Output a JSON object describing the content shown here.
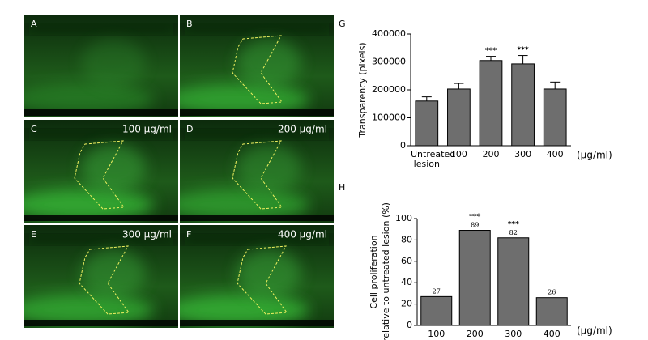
{
  "panels": [
    {
      "label": "A"
    },
    {
      "label": "B"
    },
    {
      "label": "C",
      "concentration": "100 µg/ml"
    },
    {
      "label": "D",
      "concentration": "200 µg/ml"
    },
    {
      "label": "E",
      "concentration": "300 µg/ml"
    },
    {
      "label": "F",
      "concentration": "400 µg/ml"
    }
  ],
  "chart_data": [
    {
      "type": "bar",
      "panel": "G",
      "y_label": [
        "Transparency (pixels)"
      ],
      "categories": [
        "Untreated lesion",
        "100",
        "200",
        "300",
        "400"
      ],
      "x_unit": "(µg/ml)",
      "values": [
        160000,
        203000,
        305000,
        293000,
        203000
      ],
      "errors": [
        15000,
        20000,
        15000,
        30000,
        25000
      ],
      "significance": [
        null,
        null,
        "***",
        "***",
        null
      ],
      "color": "#6e6e6e",
      "ylim": [
        0,
        400000
      ],
      "yticks": [
        0,
        100000,
        200000,
        300000,
        400000
      ],
      "grid": false
    },
    {
      "type": "bar",
      "panel": "H",
      "y_label": [
        "Cell proliferation",
        "relative to untreated lesion (%)"
      ],
      "categories": [
        "100",
        "200",
        "300",
        "400"
      ],
      "x_unit": "(µg/ml)",
      "values": [
        27,
        89,
        82,
        26
      ],
      "show_values": true,
      "significance": [
        null,
        "***",
        "***",
        null
      ],
      "color": "#6e6e6e",
      "ylim": [
        0,
        100
      ],
      "yticks": [
        0,
        20,
        40,
        60,
        80,
        100
      ],
      "grid": false
    }
  ]
}
